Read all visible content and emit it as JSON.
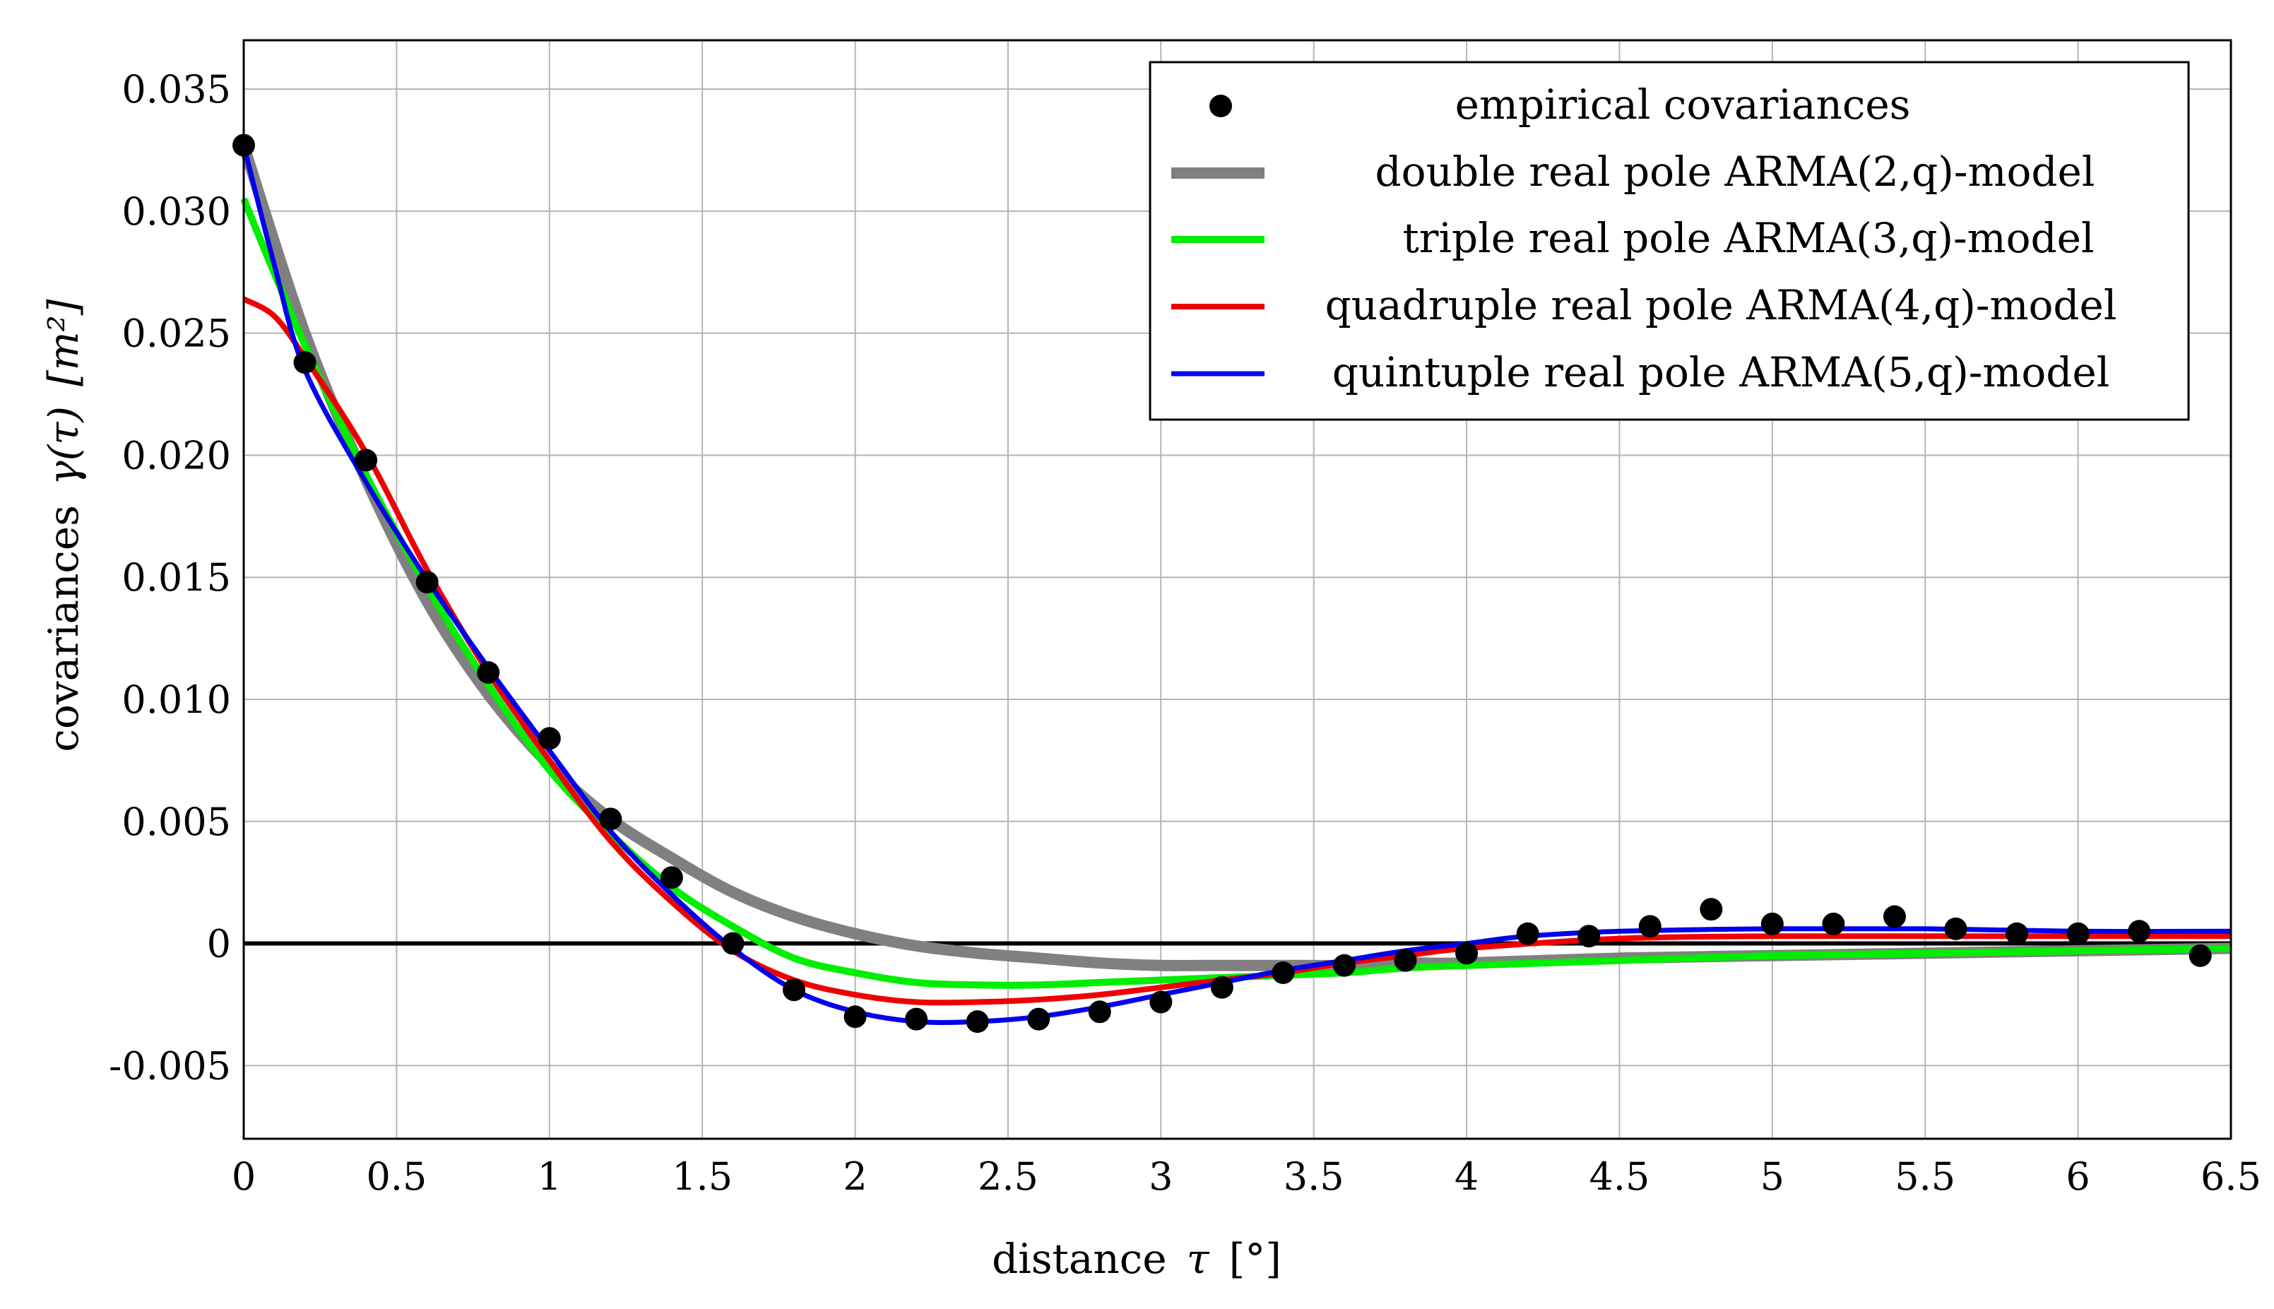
{
  "chart_data": {
    "type": "line",
    "title": "",
    "xlabel_parts": [
      "distance",
      "τ",
      "[°]"
    ],
    "ylabel_parts": [
      "covariances",
      "γ(τ)",
      "[m²]"
    ],
    "xlim": [
      0,
      6.5
    ],
    "ylim": [
      -0.008,
      0.037
    ],
    "x_ticks": [
      0,
      0.5,
      1,
      1.5,
      2,
      2.5,
      3,
      3.5,
      4,
      4.5,
      5,
      5.5,
      6,
      6.5
    ],
    "x_tick_labels": [
      "0",
      "0.5",
      "1",
      "1.5",
      "2",
      "2.5",
      "3",
      "3.5",
      "4",
      "4.5",
      "5",
      "5.5",
      "6",
      "6.5"
    ],
    "y_ticks": [
      -0.005,
      0,
      0.005,
      0.01,
      0.015,
      0.02,
      0.025,
      0.03,
      0.035
    ],
    "y_tick_labels": [
      "-0.005",
      "0",
      "0.005",
      "0.010",
      "0.015",
      "0.020",
      "0.025",
      "0.030",
      "0.035"
    ],
    "grid": true,
    "legend_position": "top-right",
    "zero_line": true,
    "scatter": {
      "name": "empirical covariances",
      "color": "#000000",
      "x": [
        0,
        0.2,
        0.4,
        0.6,
        0.8,
        1.0,
        1.2,
        1.4,
        1.6,
        1.8,
        2.0,
        2.2,
        2.4,
        2.6,
        2.8,
        3.0,
        3.2,
        3.4,
        3.6,
        3.8,
        4.0,
        4.2,
        4.4,
        4.6,
        4.8,
        5.0,
        5.2,
        5.4,
        5.6,
        5.8,
        6.0,
        6.2,
        6.4
      ],
      "y": [
        0.0327,
        0.0238,
        0.0198,
        0.0148,
        0.0111,
        0.0084,
        0.0051,
        0.0027,
        0.0,
        -0.0019,
        -0.003,
        -0.0031,
        -0.0032,
        -0.0031,
        -0.0028,
        -0.0024,
        -0.0018,
        -0.0012,
        -0.0009,
        -0.0007,
        -0.0004,
        0.0004,
        0.0003,
        0.0007,
        0.0014,
        0.0008,
        0.0008,
        0.0011,
        0.0006,
        0.0004,
        0.0004,
        0.0005,
        -0.0005
      ]
    },
    "series": [
      {
        "name": "double real pole ARMA(2,q)-model",
        "color": "#808080",
        "x": [
          0,
          0.2,
          0.4,
          0.6,
          0.8,
          1.0,
          1.2,
          1.4,
          1.6,
          1.8,
          2.0,
          2.2,
          2.4,
          2.6,
          2.8,
          3.0,
          3.2,
          3.4,
          3.6,
          3.8,
          4.0,
          4.5,
          5.0,
          5.5,
          6.0,
          6.5
        ],
        "values": [
          0.0327,
          0.025,
          0.019,
          0.014,
          0.0102,
          0.0073,
          0.0051,
          0.0035,
          0.0021,
          0.0011,
          0.0004,
          -0.0001,
          -0.0004,
          -0.0006,
          -0.0008,
          -0.0009,
          -0.0009,
          -0.0009,
          -0.0009,
          -0.0008,
          -0.0008,
          -0.0006,
          -0.0005,
          -0.0004,
          -0.0003,
          -0.0002
        ]
      },
      {
        "name": "triple real pole ARMA(3,q)-model",
        "color": "#00ee00",
        "x": [
          0,
          0.2,
          0.4,
          0.6,
          0.8,
          1.0,
          1.2,
          1.4,
          1.6,
          1.8,
          2.0,
          2.2,
          2.4,
          2.6,
          2.8,
          3.0,
          3.2,
          3.4,
          3.6,
          3.8,
          4.0,
          4.5,
          5.0,
          5.5,
          6.0,
          6.5
        ],
        "values": [
          0.0305,
          0.0245,
          0.0192,
          0.0146,
          0.0106,
          0.0071,
          0.0045,
          0.0023,
          0.0007,
          -0.0006,
          -0.0012,
          -0.0016,
          -0.0017,
          -0.0017,
          -0.0016,
          -0.0015,
          -0.0014,
          -0.0013,
          -0.0012,
          -0.001,
          -0.0009,
          -0.0007,
          -0.0005,
          -0.0004,
          -0.0003,
          -0.0002
        ]
      },
      {
        "name": "quadruple real pole ARMA(4,q)-model",
        "color": "#ee0000",
        "x": [
          0,
          0.1,
          0.2,
          0.4,
          0.6,
          0.8,
          1.0,
          1.2,
          1.4,
          1.6,
          1.8,
          2.0,
          2.2,
          2.4,
          2.6,
          2.8,
          3.0,
          3.2,
          3.4,
          3.6,
          3.8,
          4.0,
          4.5,
          5.0,
          5.5,
          6.0,
          6.5
        ],
        "values": [
          0.0264,
          0.0257,
          0.024,
          0.0201,
          0.0153,
          0.0111,
          0.0075,
          0.0042,
          0.0017,
          -0.0003,
          -0.0015,
          -0.0021,
          -0.0024,
          -0.0024,
          -0.0023,
          -0.0021,
          -0.0018,
          -0.0015,
          -0.0012,
          -0.0008,
          -0.0005,
          -0.0002,
          0.0002,
          0.0003,
          0.0003,
          0.0003,
          0.0003
        ]
      },
      {
        "name": "quintuple real pole ARMA(5,q)-model",
        "color": "#0000ee",
        "x": [
          0,
          0.1,
          0.2,
          0.4,
          0.6,
          0.8,
          1.0,
          1.2,
          1.4,
          1.6,
          1.8,
          2.0,
          2.2,
          2.4,
          2.6,
          2.8,
          3.0,
          3.2,
          3.4,
          3.6,
          3.8,
          4.0,
          4.2,
          4.5,
          5.0,
          5.5,
          6.0,
          6.5
        ],
        "values": [
          0.0327,
          0.0278,
          0.0235,
          0.0189,
          0.0149,
          0.0113,
          0.0079,
          0.0046,
          0.002,
          -0.0002,
          -0.0019,
          -0.0028,
          -0.0032,
          -0.0032,
          -0.003,
          -0.0026,
          -0.0021,
          -0.0016,
          -0.0011,
          -0.0007,
          -0.0003,
          0.0,
          0.0003,
          0.0005,
          0.0006,
          0.0006,
          0.0005,
          0.0005
        ]
      }
    ]
  }
}
